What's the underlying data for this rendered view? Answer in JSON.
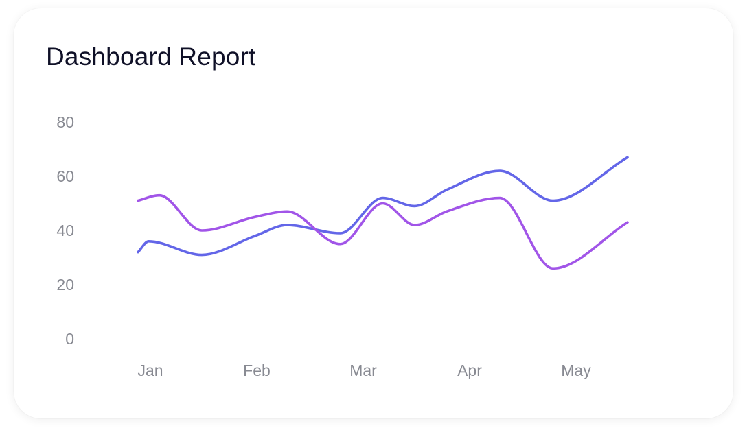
{
  "card": {
    "title": "Dashboard Report"
  },
  "colors": {
    "series_a": "#6366e8",
    "series_b": "#a155e8",
    "tick": "#888a92"
  },
  "chart_data": {
    "type": "line",
    "title": "Dashboard Report",
    "xlabel": "",
    "ylabel": "",
    "ylim": [
      0,
      80
    ],
    "yticks": [
      0,
      20,
      40,
      60,
      80
    ],
    "x_tick_labels": [
      "Jan",
      "Feb",
      "Mar",
      "Apr",
      "May"
    ],
    "grid": false,
    "smooth": true,
    "series": [
      {
        "color": "#6366e8",
        "points": [
          [
            0.0,
            32
          ],
          [
            0.1,
            36
          ],
          [
            0.6,
            31
          ],
          [
            1.1,
            38
          ],
          [
            1.4,
            42
          ],
          [
            1.9,
            39
          ],
          [
            2.3,
            52
          ],
          [
            2.6,
            49
          ],
          [
            2.9,
            55
          ],
          [
            3.4,
            62
          ],
          [
            3.9,
            51
          ],
          [
            4.6,
            67
          ]
        ]
      },
      {
        "color": "#a155e8",
        "points": [
          [
            0.0,
            51
          ],
          [
            0.2,
            53
          ],
          [
            0.6,
            40
          ],
          [
            1.1,
            45
          ],
          [
            1.4,
            47
          ],
          [
            1.9,
            35
          ],
          [
            2.3,
            50
          ],
          [
            2.6,
            42
          ],
          [
            2.9,
            47
          ],
          [
            3.4,
            52
          ],
          [
            3.9,
            26
          ],
          [
            4.6,
            43
          ]
        ]
      }
    ]
  }
}
